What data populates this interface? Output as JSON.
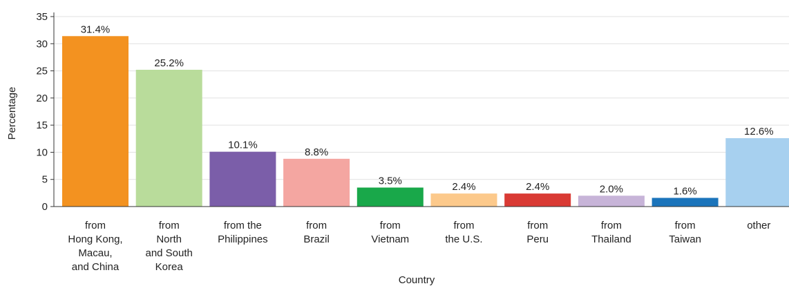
{
  "chart_data": {
    "type": "bar",
    "title": "",
    "xlabel": "Country",
    "ylabel": "Percentage",
    "ylim": [
      0,
      35
    ],
    "yticks": [
      0,
      5,
      10,
      15,
      20,
      25,
      30,
      35
    ],
    "grid": true,
    "legend": "none",
    "categories": [
      [
        "from",
        "Hong Kong,",
        "Macau,",
        "and China"
      ],
      [
        "from",
        "North",
        "and South",
        "Korea"
      ],
      [
        "from the",
        "Philippines"
      ],
      [
        "from",
        "Brazil"
      ],
      [
        "from",
        "Vietnam"
      ],
      [
        "from",
        "the U.S."
      ],
      [
        "from",
        "Peru"
      ],
      [
        "from",
        "Thailand"
      ],
      [
        "from",
        "Taiwan"
      ],
      [
        "other"
      ]
    ],
    "values": [
      31.4,
      25.2,
      10.1,
      8.8,
      3.5,
      2.4,
      2.4,
      2.0,
      1.6,
      12.6
    ],
    "data_labels": [
      "31.4%",
      "25.2%",
      "10.1%",
      "8.8%",
      "3.5%",
      "2.4%",
      "2.4%",
      "2.0%",
      "1.6%",
      "12.6%"
    ],
    "colors": [
      "#f39220",
      "#b9dc9b",
      "#7b5ea9",
      "#f4a6a1",
      "#19a84a",
      "#fcc98b",
      "#d93a34",
      "#c7b4d8",
      "#1b74bb",
      "#a7d0ef"
    ]
  }
}
